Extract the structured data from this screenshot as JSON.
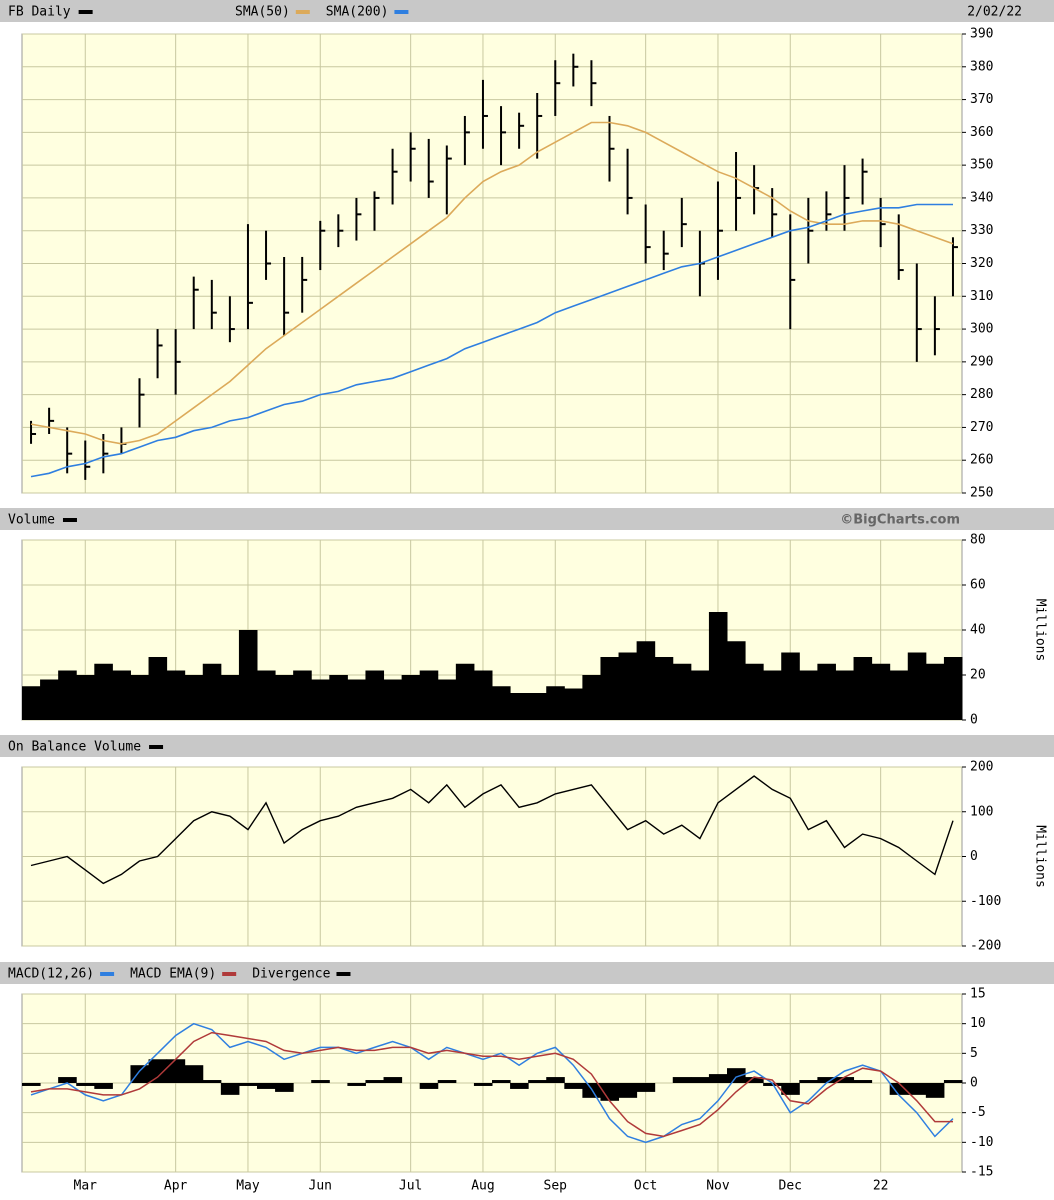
{
  "chart_data": [
    {
      "type": "stock",
      "title": "FB Daily",
      "color": "#000000",
      "date": "2/02/22",
      "high": [
        272,
        276,
        270,
        266,
        268,
        270,
        285,
        300,
        300,
        316,
        315,
        310,
        332,
        330,
        322,
        322,
        333,
        335,
        340,
        342,
        355,
        360,
        358,
        356,
        365,
        376,
        368,
        366,
        372,
        382,
        384,
        382,
        365,
        355,
        338,
        330,
        340,
        330,
        345,
        354,
        350,
        343,
        335,
        340,
        342,
        350,
        352,
        340,
        335,
        320,
        310,
        328
      ],
      "low": [
        265,
        268,
        256,
        254,
        256,
        262,
        270,
        285,
        280,
        300,
        300,
        296,
        300,
        315,
        298,
        305,
        318,
        325,
        327,
        330,
        338,
        345,
        340,
        335,
        350,
        355,
        350,
        355,
        352,
        365,
        374,
        368,
        345,
        335,
        320,
        318,
        325,
        310,
        315,
        330,
        335,
        328,
        300,
        320,
        330,
        330,
        338,
        325,
        315,
        290,
        292,
        310
      ],
      "close": [
        268,
        272,
        262,
        258,
        262,
        265,
        280,
        295,
        290,
        312,
        305,
        300,
        308,
        320,
        305,
        315,
        330,
        330,
        335,
        340,
        348,
        355,
        345,
        352,
        360,
        365,
        360,
        362,
        365,
        375,
        380,
        375,
        355,
        340,
        325,
        323,
        332,
        320,
        330,
        340,
        343,
        335,
        315,
        330,
        335,
        340,
        348,
        332,
        318,
        300,
        300,
        325
      ],
      "series": [
        {
          "name": "SMA(50)",
          "color": "#dcaa5a",
          "values": [
            271,
            270,
            269,
            268,
            266,
            265,
            266,
            268,
            272,
            276,
            280,
            284,
            289,
            294,
            298,
            302,
            306,
            310,
            314,
            318,
            322,
            326,
            330,
            334,
            340,
            345,
            348,
            350,
            354,
            357,
            360,
            363,
            363,
            362,
            360,
            357,
            354,
            351,
            348,
            346,
            343,
            340,
            336,
            333,
            332,
            332,
            333,
            333,
            332,
            330,
            328,
            326
          ]
        },
        {
          "name": "SMA(200)",
          "color": "#2f7fe0",
          "values": [
            255,
            256,
            258,
            259,
            261,
            262,
            264,
            266,
            267,
            269,
            270,
            272,
            273,
            275,
            277,
            278,
            280,
            281,
            283,
            284,
            285,
            287,
            289,
            291,
            294,
            296,
            298,
            300,
            302,
            305,
            307,
            309,
            311,
            313,
            315,
            317,
            319,
            320,
            322,
            324,
            326,
            328,
            330,
            331,
            333,
            335,
            336,
            337,
            337,
            338,
            338,
            338
          ]
        }
      ],
      "ylim": [
        250,
        390
      ],
      "yticks": [
        250,
        260,
        270,
        280,
        290,
        300,
        310,
        320,
        330,
        340,
        350,
        360,
        370,
        380,
        390
      ],
      "grid": true
    },
    {
      "type": "area",
      "title": "Volume",
      "color": "#000000",
      "credit": "©BigCharts.com",
      "y_label": "Millions",
      "values": [
        15,
        18,
        22,
        20,
        25,
        22,
        20,
        28,
        22,
        20,
        25,
        20,
        40,
        22,
        20,
        22,
        18,
        20,
        18,
        22,
        18,
        20,
        22,
        18,
        25,
        22,
        15,
        12,
        12,
        15,
        14,
        20,
        28,
        30,
        35,
        28,
        25,
        22,
        48,
        35,
        25,
        22,
        30,
        22,
        25,
        22,
        28,
        25,
        22,
        30,
        25,
        28
      ],
      "ylim": [
        0,
        80
      ],
      "yticks": [
        0,
        20,
        40,
        60,
        80
      ],
      "grid": true
    },
    {
      "type": "line",
      "title": "On Balance Volume",
      "color": "#000000",
      "y_label": "Millions",
      "values": [
        -20,
        -10,
        0,
        -30,
        -60,
        -40,
        -10,
        0,
        40,
        80,
        100,
        90,
        60,
        120,
        30,
        60,
        80,
        90,
        110,
        120,
        130,
        150,
        120,
        160,
        110,
        140,
        160,
        110,
        120,
        140,
        150,
        160,
        110,
        60,
        80,
        50,
        70,
        40,
        120,
        150,
        180,
        150,
        130,
        60,
        80,
        20,
        50,
        40,
        20,
        -10,
        -40,
        80
      ],
      "ylim": [
        -200,
        200
      ],
      "yticks": [
        -200,
        -100,
        0,
        100,
        200
      ],
      "grid": true
    },
    {
      "type": "macd",
      "categories": [
        null,
        null,
        null,
        "Mar",
        null,
        null,
        null,
        null,
        "Apr",
        null,
        null,
        null,
        "May",
        null,
        null,
        null,
        "Jun",
        null,
        null,
        null,
        null,
        "Jul",
        null,
        null,
        null,
        "Aug",
        null,
        null,
        null,
        "Sep",
        null,
        null,
        null,
        null,
        "Oct",
        null,
        null,
        null,
        "Nov",
        null,
        null,
        null,
        "Dec",
        null,
        null,
        null,
        null,
        "22",
        null,
        null,
        null,
        null
      ],
      "series": [
        {
          "name": "MACD(12,26)",
          "color": "#2f7fe0",
          "values": [
            -2,
            -1,
            0,
            -2,
            -3,
            -2,
            2,
            5,
            8,
            10,
            9,
            6,
            7,
            6,
            4,
            5,
            6,
            6,
            5,
            6,
            7,
            6,
            4,
            6,
            5,
            4,
            5,
            3,
            5,
            6,
            3,
            -1,
            -6,
            -9,
            -10,
            -9,
            -7,
            -6,
            -3,
            1,
            2,
            0,
            -5,
            -3,
            0,
            2,
            3,
            2,
            -2,
            -5,
            -9,
            -6
          ]
        },
        {
          "name": "MACD EMA(9)",
          "color": "#b03a3a",
          "values": [
            -1.5,
            -1,
            -1,
            -1.5,
            -2,
            -2,
            -1,
            1,
            4,
            7,
            8.5,
            8,
            7.5,
            7,
            5.5,
            5,
            5.5,
            6,
            5.5,
            5.5,
            6,
            6,
            5,
            5.5,
            5,
            4.5,
            4.5,
            4,
            4.5,
            5,
            4,
            1.5,
            -3,
            -6.5,
            -8.5,
            -9,
            -8,
            -7,
            -4.5,
            -1.5,
            1,
            0.5,
            -3,
            -3.5,
            -1,
            1,
            2.5,
            2,
            0,
            -3,
            -6.5,
            -6.5
          ]
        },
        {
          "name": "Divergence",
          "color": "#000000",
          "style": "bar",
          "values": [
            -0.5,
            0,
            1,
            -0.5,
            -1,
            0,
            3,
            4,
            4,
            3,
            0.5,
            -2,
            -0.5,
            -1,
            -1.5,
            0,
            0.5,
            0,
            -0.5,
            0.5,
            1,
            0,
            -1,
            0.5,
            0,
            -0.5,
            0.5,
            -1,
            0.5,
            1,
            -1,
            -2.5,
            -3,
            -2.5,
            -1.5,
            0,
            1,
            1,
            1.5,
            2.5,
            1,
            -0.5,
            -2,
            0.5,
            1,
            1,
            0.5,
            0,
            -2,
            -2,
            -2.5,
            0.5
          ]
        }
      ],
      "ylim": [
        -15,
        15
      ],
      "yticks": [
        -15,
        -10,
        -5,
        0,
        5,
        10,
        15
      ],
      "grid": true
    }
  ]
}
